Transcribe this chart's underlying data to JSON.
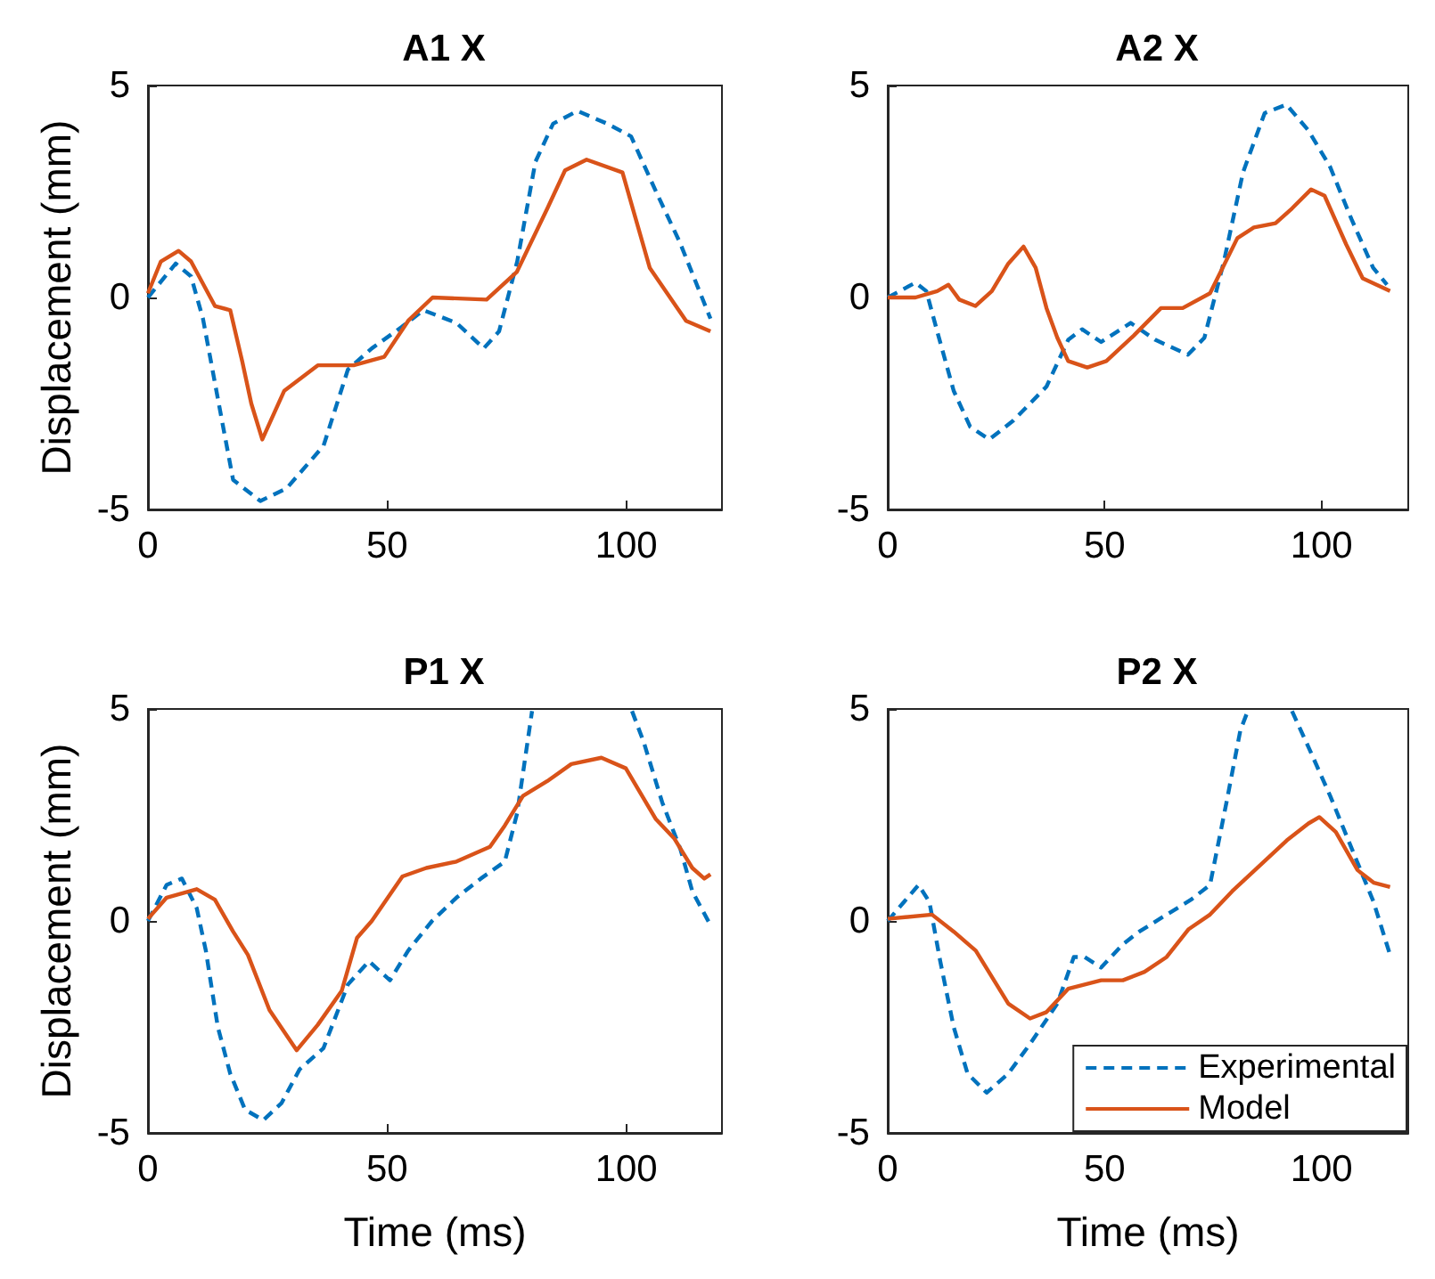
{
  "chart_data": [
    {
      "type": "line",
      "title": "A1 X",
      "ylabel": "Displacement (mm)",
      "xlim": [
        0,
        120
      ],
      "xticks": [
        0,
        50,
        100
      ],
      "ylim": [
        -5,
        5
      ],
      "yticks": [
        -5,
        0,
        5
      ],
      "grid": false,
      "legend": false,
      "marker": "none",
      "series": [
        {
          "color": "#0072bd",
          "line_style": "dashed",
          "x": [
            0,
            5.8,
            9,
            11.5,
            15.3,
            17.8,
            23.5,
            29,
            36.7,
            41.8,
            46.8,
            53,
            57.6,
            64.5,
            70.2,
            73.4,
            77.2,
            81,
            84.7,
            89.8,
            96,
            101,
            106.2,
            111.2,
            117.6
          ],
          "values": [
            0,
            0.8,
            0.5,
            -0.5,
            -2.8,
            -4.3,
            -4.8,
            -4.5,
            -3.5,
            -1.7,
            -1.2,
            -0.7,
            -0.3,
            -0.6,
            -1.2,
            -0.8,
            0.85,
            3.2,
            4.1,
            4.4,
            4.1,
            3.8,
            2.5,
            1.3,
            -0.5
          ]
        },
        {
          "color": "#d95319",
          "line_style": "solid",
          "x": [
            0,
            2.7,
            6.4,
            9,
            14,
            17.2,
            19.7,
            21.6,
            23.9,
            28.5,
            35.5,
            43,
            49.4,
            54.4,
            59.5,
            70.8,
            77.1,
            83.5,
            87.2,
            91.7,
            99.2,
            104.9,
            112.5,
            117.6
          ],
          "values": [
            0.1,
            0.85,
            1.1,
            0.85,
            -0.2,
            -0.3,
            -1.5,
            -2.5,
            -3.35,
            -2.2,
            -1.6,
            -1.6,
            -1.4,
            -0.55,
            0,
            -0.05,
            0.6,
            2.1,
            3.0,
            3.25,
            2.95,
            0.7,
            -0.55,
            -0.8
          ]
        }
      ]
    },
    {
      "type": "line",
      "title": "A2 X",
      "xlim": [
        0,
        120
      ],
      "xticks": [
        0,
        50,
        100
      ],
      "ylim": [
        -5,
        5
      ],
      "yticks": [
        -5,
        0,
        5
      ],
      "grid": false,
      "legend": false,
      "marker": "none",
      "series": [
        {
          "color": "#0072bd",
          "line_style": "dashed",
          "x": [
            0,
            6.4,
            8.9,
            11.4,
            15.2,
            19,
            23.4,
            29,
            36.6,
            41.6,
            44.8,
            49.2,
            56,
            61.7,
            69.2,
            73,
            77.5,
            81.9,
            86.9,
            91.9,
            96.9,
            101.9,
            106.9,
            111.9,
            115.1
          ],
          "values": [
            0,
            0.35,
            0.15,
            -0.8,
            -2.2,
            -3.05,
            -3.35,
            -2.9,
            -2.1,
            -1,
            -0.75,
            -1.05,
            -0.6,
            -1,
            -1.35,
            -0.95,
            0.85,
            2.95,
            4.35,
            4.55,
            3.95,
            3.1,
            1.85,
            0.7,
            0.3
          ]
        },
        {
          "color": "#d95319",
          "line_style": "solid",
          "x": [
            0,
            6.4,
            11.4,
            14,
            16.5,
            20.2,
            24,
            27.8,
            31.3,
            34.1,
            36.6,
            39.1,
            41.6,
            46,
            50.4,
            56.7,
            63,
            68,
            74.3,
            80.6,
            84.4,
            89.4,
            93.2,
            97.6,
            100.7,
            105.7,
            109.5,
            115.8
          ],
          "values": [
            0,
            0,
            0.15,
            0.3,
            -0.05,
            -0.2,
            0.15,
            0.8,
            1.2,
            0.7,
            -0.25,
            -0.95,
            -1.5,
            -1.65,
            -1.5,
            -0.9,
            -0.25,
            -0.25,
            0.1,
            1.4,
            1.65,
            1.75,
            2.1,
            2.55,
            2.4,
            1.25,
            0.45,
            0.15
          ]
        }
      ]
    },
    {
      "type": "line",
      "title": "P1 X",
      "xlabel": "Time (ms)",
      "ylabel": "Displacement (mm)",
      "xlim": [
        0,
        120
      ],
      "xticks": [
        0,
        50,
        100
      ],
      "ylim": [
        -5,
        5
      ],
      "yticks": [
        -5,
        0,
        5
      ],
      "grid": false,
      "legend": false,
      "marker": "none",
      "series": [
        {
          "color": "#0072bd",
          "line_style": "dashed",
          "x": [
            0,
            3.9,
            7.1,
            10.2,
            12.1,
            14.6,
            17.2,
            20.3,
            24.1,
            27.9,
            31.7,
            36.7,
            41.8,
            46.2,
            50.6,
            54.4,
            59.4,
            64.5,
            69.6,
            74.6,
            77.2,
            79,
            80.3,
            90,
            101.2,
            103.7,
            107.5,
            111.3,
            113.8,
            117.6
          ],
          "values": [
            0,
            0.85,
            1.0,
            0.3,
            -0.7,
            -2.5,
            -3.6,
            -4.45,
            -4.7,
            -4.3,
            -3.5,
            -3.0,
            -1.5,
            -0.95,
            -1.4,
            -0.7,
            0,
            0.55,
            1.0,
            1.4,
            2.55,
            3.95,
            4.95,
            null,
            4.95,
            4.2,
            2.8,
            1.7,
            0.7,
            -0.1
          ]
        },
        {
          "color": "#d95319",
          "line_style": "solid",
          "x": [
            0,
            3.9,
            10.2,
            14,
            17.8,
            20.9,
            25.4,
            31.1,
            35.5,
            40.5,
            43.7,
            46.8,
            53.2,
            58.2,
            64.5,
            71.5,
            74.6,
            78.4,
            83.5,
            88.5,
            94.8,
            99.9,
            106.2,
            110,
            113.8,
            116.3,
            117.6
          ],
          "values": [
            0.05,
            0.55,
            0.75,
            0.5,
            -0.25,
            -0.8,
            -2.1,
            -3.05,
            -2.45,
            -1.65,
            -0.4,
            0,
            1.05,
            1.25,
            1.4,
            1.75,
            2.25,
            2.95,
            3.3,
            3.7,
            3.85,
            3.6,
            2.4,
            1.95,
            1.25,
            1.0,
            1.1
          ]
        }
      ]
    },
    {
      "type": "line",
      "title": "P2 X",
      "xlabel": "Time (ms)",
      "xlim": [
        0,
        120
      ],
      "xticks": [
        0,
        50,
        100
      ],
      "ylim": [
        -5,
        5
      ],
      "yticks": [
        -5,
        0,
        5
      ],
      "grid": false,
      "legend": "bottom right",
      "marker": "none",
      "series": [
        {
          "name": "Experimental",
          "color": "#0072bd",
          "line_style": "dashed",
          "x": [
            0,
            7.1,
            9.6,
            12.1,
            15.2,
            18.4,
            22.8,
            27.8,
            32.8,
            39.1,
            42.9,
            45.4,
            49.2,
            54.2,
            58,
            64.3,
            69.9,
            74.3,
            78.1,
            81.3,
            83,
            88,
            93.2,
            97,
            102,
            107,
            112,
            115.8
          ],
          "values": [
            0,
            0.85,
            0.45,
            -0.95,
            -2.5,
            -3.6,
            -4.05,
            -3.6,
            -2.9,
            -1.95,
            -0.85,
            -0.85,
            -1.1,
            -0.55,
            -0.25,
            0.15,
            0.5,
            0.85,
            2.8,
            4.5,
            4.95,
            null,
            4.95,
            4.1,
            2.95,
            1.7,
            0.45,
            -0.8
          ]
        },
        {
          "name": "Model",
          "color": "#d95319",
          "line_style": "solid",
          "x": [
            0,
            10.2,
            15.2,
            20.3,
            27.8,
            32.8,
            36.6,
            41.6,
            49.2,
            54.2,
            59.2,
            64.3,
            69.3,
            74.3,
            79.4,
            85.7,
            92,
            97,
            99.5,
            103.3,
            108.3,
            112.1,
            115.8
          ],
          "values": [
            0.05,
            0.15,
            -0.25,
            -0.7,
            -1.95,
            -2.3,
            -2.15,
            -1.6,
            -1.4,
            -1.4,
            -1.2,
            -0.85,
            -0.2,
            0.15,
            0.7,
            1.3,
            1.9,
            2.3,
            2.45,
            2.1,
            1.2,
            0.9,
            0.8
          ]
        }
      ]
    }
  ]
}
